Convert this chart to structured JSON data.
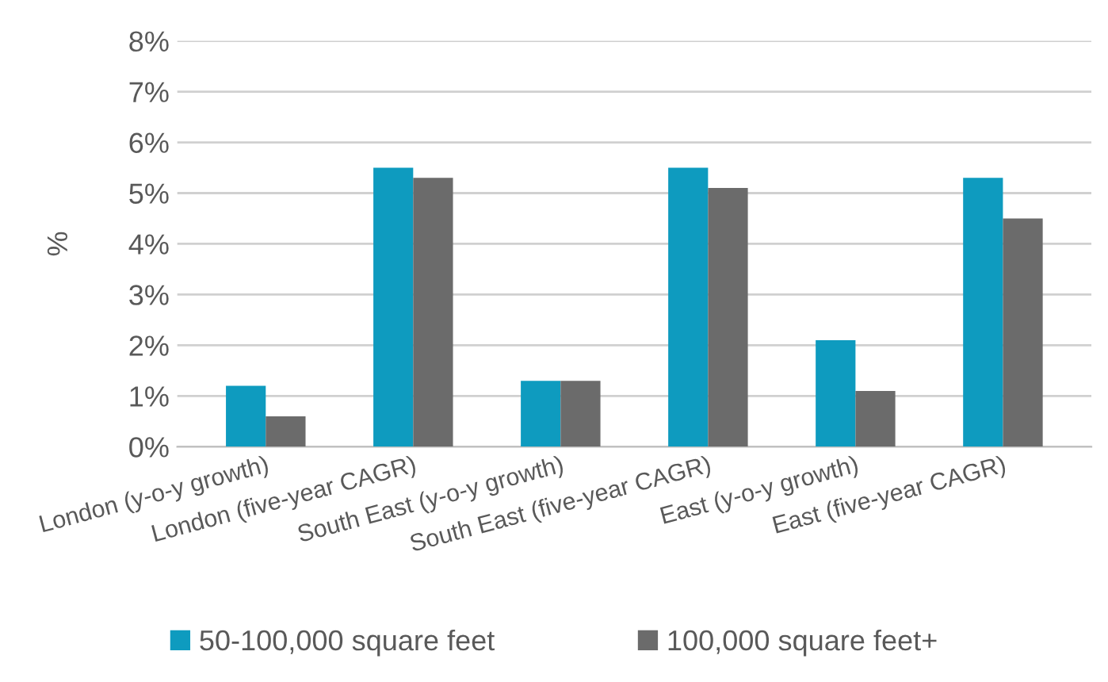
{
  "chart_data": {
    "type": "bar",
    "ylabel": "%",
    "categories": [
      "London (y-o-y growth)",
      "London (five-year CAGR)",
      "South East (y-o-y growth)",
      "South East (five-year CAGR)",
      "East (y-o-y growth)",
      "East (five-year CAGR)"
    ],
    "series": [
      {
        "name": "50-100,000 square feet",
        "color": "#0e9bbf",
        "values": [
          1.2,
          5.5,
          1.3,
          5.5,
          2.1,
          5.3
        ]
      },
      {
        "name": "100,000 square feet+",
        "color": "#6b6b6b",
        "values": [
          0.6,
          5.3,
          1.3,
          5.1,
          1.1,
          4.5
        ]
      }
    ],
    "ylim": [
      0,
      8
    ],
    "yticks": [
      {
        "value": 0,
        "label": "0%"
      },
      {
        "value": 1,
        "label": "1%"
      },
      {
        "value": 2,
        "label": "2%"
      },
      {
        "value": 3,
        "label": "3%"
      },
      {
        "value": 4,
        "label": "4%"
      },
      {
        "value": 5,
        "label": "5%"
      },
      {
        "value": 6,
        "label": "6%"
      },
      {
        "value": 7,
        "label": "7%"
      },
      {
        "value": 8,
        "label": "8%"
      }
    ],
    "grid": "y",
    "legend": "bottom"
  }
}
